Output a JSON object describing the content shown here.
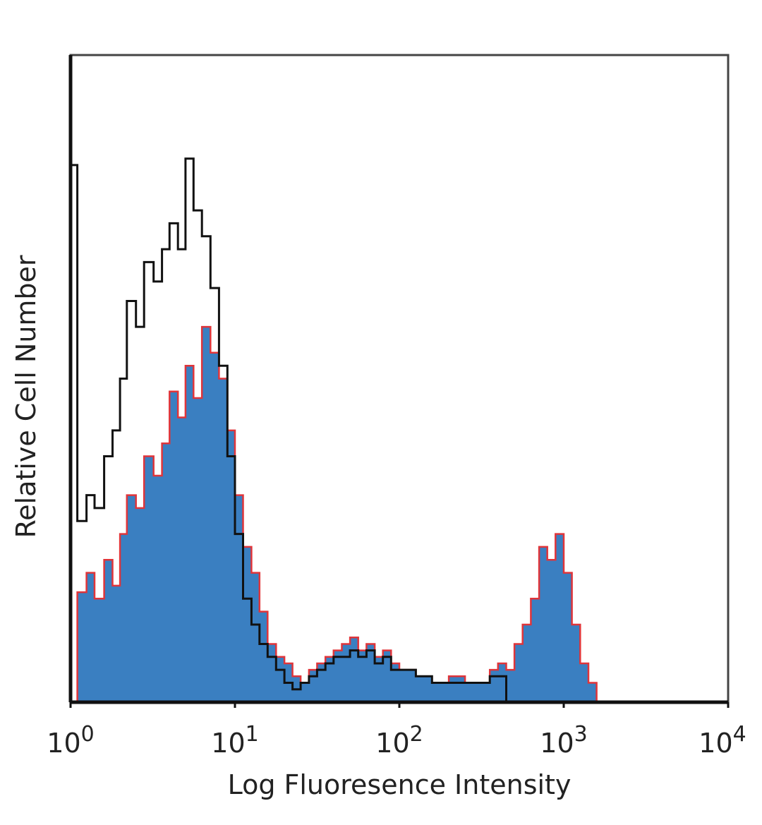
{
  "chart_data": {
    "type": "area",
    "title": "",
    "xlabel": "Log Fluoresence Intensity",
    "ylabel": "Relative Cell Number",
    "x_scale": "log10",
    "xlim": [
      1,
      10000
    ],
    "ylim": [
      0,
      100
    ],
    "grid": false,
    "legend": "none",
    "x_ticks": [
      {
        "value": 1,
        "base": "10",
        "exp": "0"
      },
      {
        "value": 10,
        "base": "10",
        "exp": "1"
      },
      {
        "value": 100,
        "base": "10",
        "exp": "2"
      },
      {
        "value": 1000,
        "base": "10",
        "exp": "3"
      },
      {
        "value": 10000,
        "base": "10",
        "exp": "4"
      }
    ],
    "x": [
      1.0,
      1.1,
      1.25,
      1.4,
      1.6,
      1.8,
      2.0,
      2.2,
      2.5,
      2.8,
      3.2,
      3.6,
      4.0,
      4.5,
      5.0,
      5.6,
      6.3,
      7.1,
      8.0,
      9.0,
      10.0,
      11.2,
      12.6,
      14.1,
      15.8,
      17.8,
      20.0,
      22.4,
      25.1,
      28.2,
      31.6,
      35.5,
      39.8,
      44.7,
      50.1,
      56.2,
      63.1,
      70.8,
      79.4,
      89.1,
      100,
      126,
      158,
      200,
      251,
      316,
      355,
      398,
      447,
      501,
      562,
      631,
      708,
      794,
      891,
      1000,
      1122,
      1259,
      1413,
      1585,
      1778,
      2000,
      10000
    ],
    "series": [
      {
        "color": "#3a7fc1",
        "edge_color": "#e0353a",
        "fill": true,
        "values": [
          0,
          17,
          20,
          16,
          22,
          18,
          26,
          32,
          30,
          38,
          35,
          40,
          48,
          44,
          52,
          47,
          58,
          54,
          50,
          42,
          32,
          24,
          20,
          14,
          9,
          7,
          6,
          4,
          3,
          5,
          6,
          7,
          8,
          9,
          10,
          8,
          9,
          7,
          8,
          6,
          5,
          4,
          3,
          4,
          3,
          3,
          5,
          6,
          5,
          9,
          12,
          16,
          24,
          22,
          26,
          20,
          12,
          6,
          3,
          0,
          0,
          0,
          0
        ]
      },
      {
        "color": "#111111",
        "fill": false,
        "values": [
          83,
          28,
          32,
          30,
          38,
          42,
          50,
          62,
          58,
          68,
          65,
          70,
          74,
          70,
          84,
          76,
          72,
          64,
          52,
          38,
          26,
          16,
          12,
          9,
          7,
          5,
          3,
          2,
          3,
          4,
          5,
          6,
          7,
          7,
          8,
          7,
          8,
          6,
          7,
          5,
          5,
          4,
          3,
          3,
          3,
          3,
          4,
          4,
          0,
          0,
          0,
          0,
          0,
          0,
          0,
          0,
          0,
          0,
          0,
          0,
          0,
          0,
          0
        ]
      }
    ]
  }
}
